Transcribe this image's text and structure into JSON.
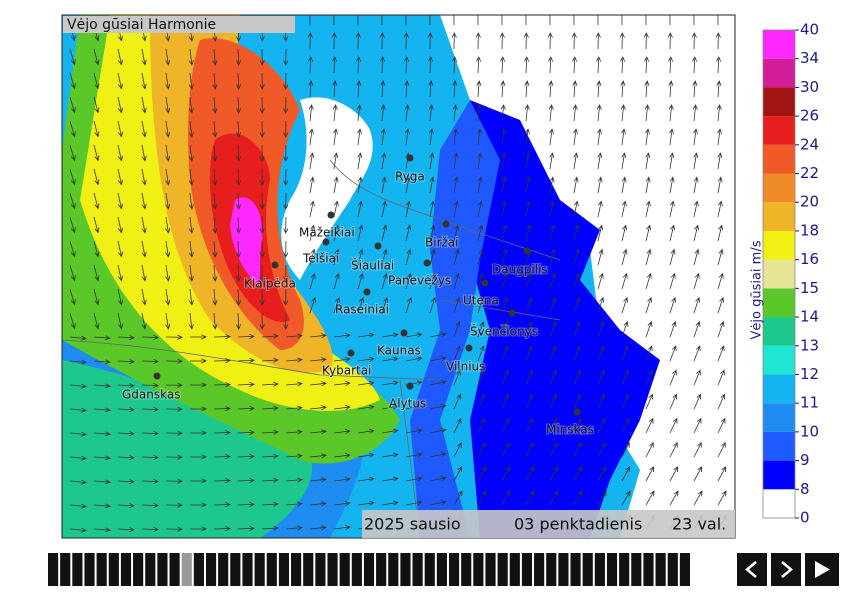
{
  "map": {
    "title": "Vėjo gūsiai Harmonie",
    "cities": [
      "Ryga",
      "Mažeikiai",
      "Telšiai",
      "Šiauliai",
      "Biržai",
      "Panevėžys",
      "Daugpilis",
      "Klaipėda",
      "Utena",
      "Raseiniai",
      "Švenčionys",
      "Kaunas",
      "Vilnius",
      "Kybartai",
      "Gdanskas",
      "Alytus",
      "Minskas"
    ],
    "date": {
      "year_month": "2025 sausio",
      "day": "03 penktadienis",
      "hour": "23 val."
    }
  },
  "legend": {
    "label": "Vėjo gūsiai m/s",
    "ticks": [
      0,
      8,
      9,
      10,
      11,
      12,
      13,
      14,
      15,
      16,
      18,
      20,
      22,
      24,
      26,
      30,
      34,
      40
    ],
    "colors": [
      "#ffffff",
      "#0000ff",
      "#1e5aff",
      "#1e8cf0",
      "#14b4f0",
      "#1ee6d2",
      "#1ec88c",
      "#5ac828",
      "#e6e696",
      "#f0f014",
      "#f0b428",
      "#f08c28",
      "#f05a28",
      "#e61e1e",
      "#a01414",
      "#d21e96",
      "#ff28ff"
    ]
  }
}
